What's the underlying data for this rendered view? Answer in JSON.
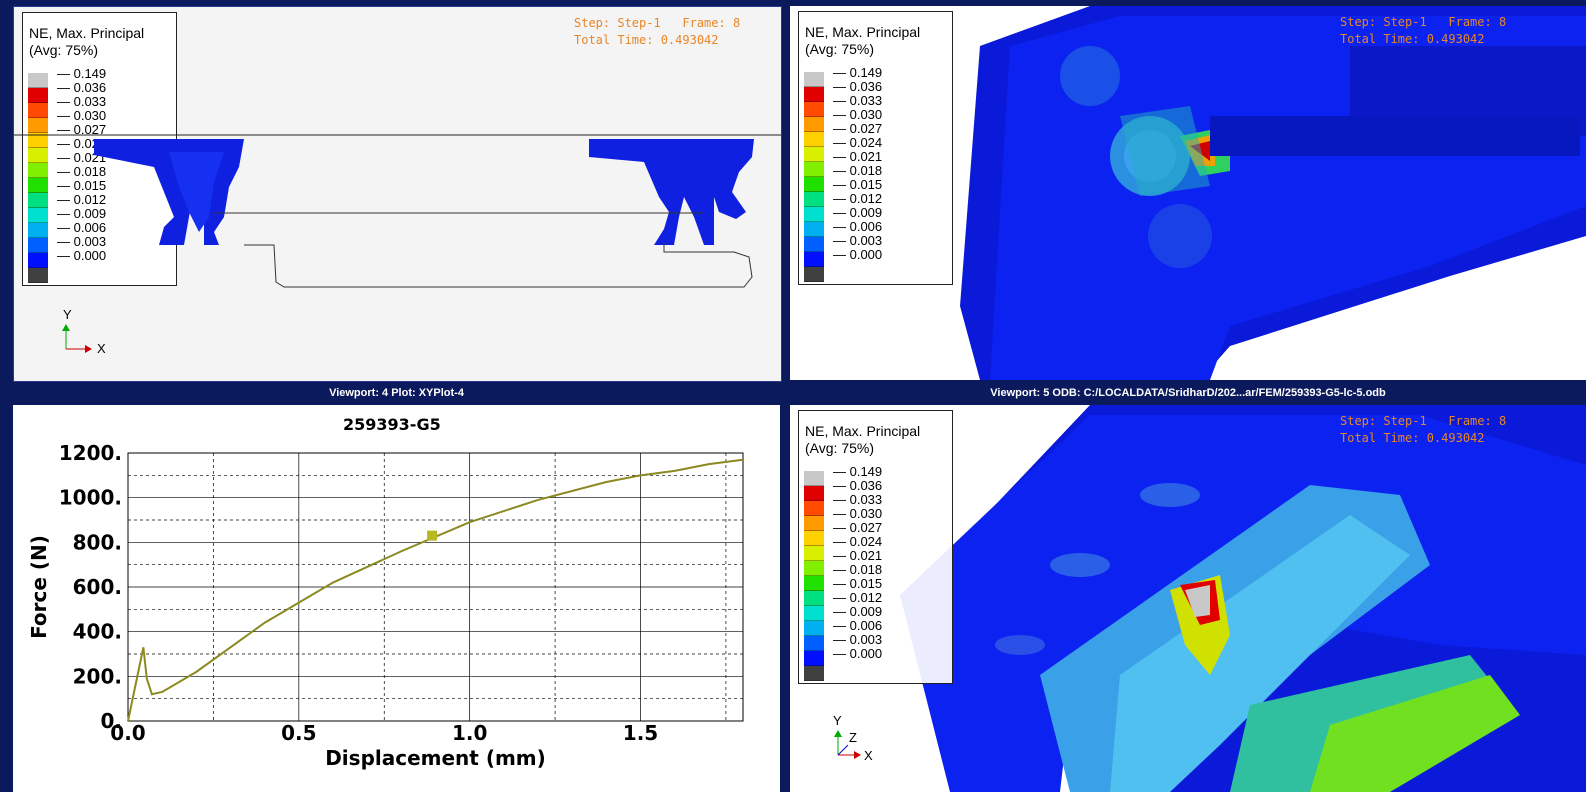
{
  "legend": {
    "title_line1": "NE, Max. Principal",
    "title_line2": "(Avg: 75%)",
    "values": [
      "0.149",
      "0.036",
      "0.033",
      "0.030",
      "0.027",
      "0.024",
      "0.021",
      "0.018",
      "0.015",
      "0.012",
      "0.009",
      "0.006",
      "0.003",
      "0.000"
    ],
    "colors": [
      "#c8c8c8",
      "#e00000",
      "#ff4a00",
      "#ff9a00",
      "#ffd000",
      "#d8f000",
      "#80f000",
      "#20e000",
      "#00e080",
      "#00e0d0",
      "#00b0f0",
      "#0060ff",
      "#0010ff",
      "#404040"
    ]
  },
  "step_info": {
    "line1": "Step: Step-1   Frame: 8",
    "line2": "Total Time: 0.493042"
  },
  "triad_top": {
    "y": "Y",
    "x": "X"
  },
  "triad_bottom": {
    "y": "Y",
    "z": "Z",
    "x": "X"
  },
  "viewport4": {
    "label": "Viewport: 4     Plot: XYPlot-4"
  },
  "viewport5": {
    "label": "Viewport: 5     ODB: C:/LOCALDATA/SridharD/202...ar/FEM/259393-G5-lc-5.odb"
  },
  "colors": {
    "curve": "#8a8a20",
    "marker": "#b8b820",
    "frame_bg": "#0b1a5c"
  },
  "chart_data": {
    "type": "line",
    "title": "259393-G5",
    "xlabel": "Displacement (mm)",
    "ylabel": "Force (N)",
    "xlim": [
      0,
      1.8
    ],
    "ylim": [
      0,
      1200
    ],
    "x_ticks": [
      "0.0",
      "0.5",
      "1.0",
      "1.5"
    ],
    "y_ticks": [
      "0.",
      "200.",
      "400.",
      "600.",
      "800.",
      "1000.",
      "1200."
    ],
    "series": [
      {
        "x": [
          0.0,
          0.03,
          0.045,
          0.055,
          0.07,
          0.1,
          0.2,
          0.4,
          0.6,
          0.8,
          1.0,
          1.2,
          1.4,
          1.5,
          1.6,
          1.7,
          1.8
        ],
        "y": [
          0,
          220,
          330,
          190,
          120,
          130,
          220,
          440,
          620,
          760,
          890,
          990,
          1070,
          1100,
          1120,
          1150,
          1170
        ]
      }
    ],
    "marker": {
      "x": 0.89,
      "y": 830
    },
    "grid": true
  }
}
